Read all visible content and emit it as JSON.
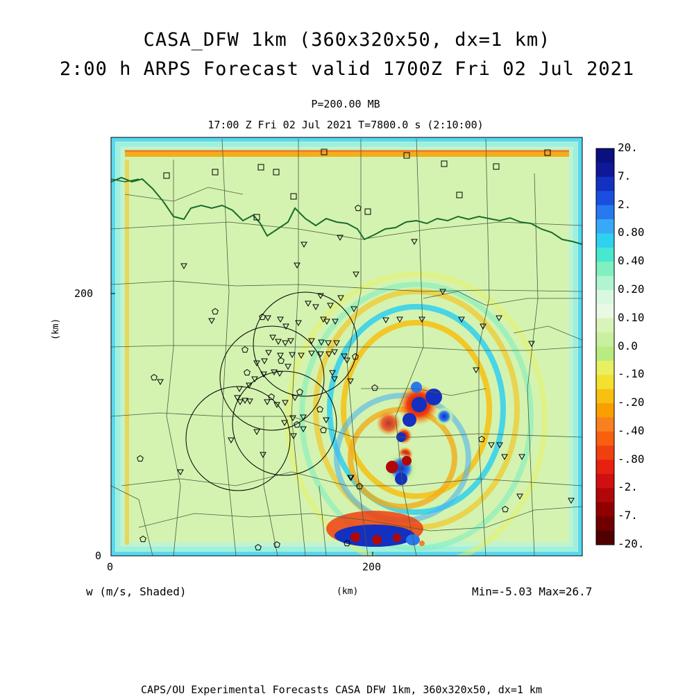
{
  "title": {
    "line1": "CASA_DFW 1km (360x320x50, dx=1 km)",
    "line2": "2:00 h ARPS Forecast valid 1700Z Fri 02 Jul 2021"
  },
  "level_label": "P=200.00 MB",
  "time_label": "17:00 Z Fri 02 Jul 2021    T=7800.0 s (2:10:00)",
  "axes": {
    "x_ticks": [
      "0",
      "200"
    ],
    "y_ticks": [
      "0",
      "200"
    ],
    "x_unit": "(km)",
    "y_unit": "(km)"
  },
  "field_label": "w (m/s, Shaded)",
  "minmax_label": "Min=-5.03 Max=26.7",
  "footer": "CAPS/OU Experimental Forecasts  CASA DFW 1km, 360x320x50, dx=1 km",
  "colorbar": {
    "labels": [
      "20.",
      "7.",
      "2.",
      "0.80",
      "0.40",
      "0.20",
      "0.10",
      "0.0",
      "-.10",
      "-.20",
      "-.40",
      "-.80",
      "-2.",
      "-7.",
      "-20."
    ],
    "colors": [
      "#0a1080",
      "#10189a",
      "#1430c0",
      "#1a4ee0",
      "#2878f0",
      "#38a8f8",
      "#30d0f0",
      "#48e8d0",
      "#80f0c0",
      "#b0f4d0",
      "#d8f8e0",
      "#eaf8e4",
      "#d8f4b8",
      "#c8f0a0",
      "#b8ec80",
      "#e8f060",
      "#f4e030",
      "#f8c010",
      "#f8a000",
      "#f88020",
      "#f86010",
      "#f04010",
      "#e82010",
      "#d01010",
      "#b00808",
      "#900000",
      "#700000",
      "#500000"
    ]
  },
  "background_color": "#d4f3b0",
  "state_border_color": "#1a6b2a"
}
